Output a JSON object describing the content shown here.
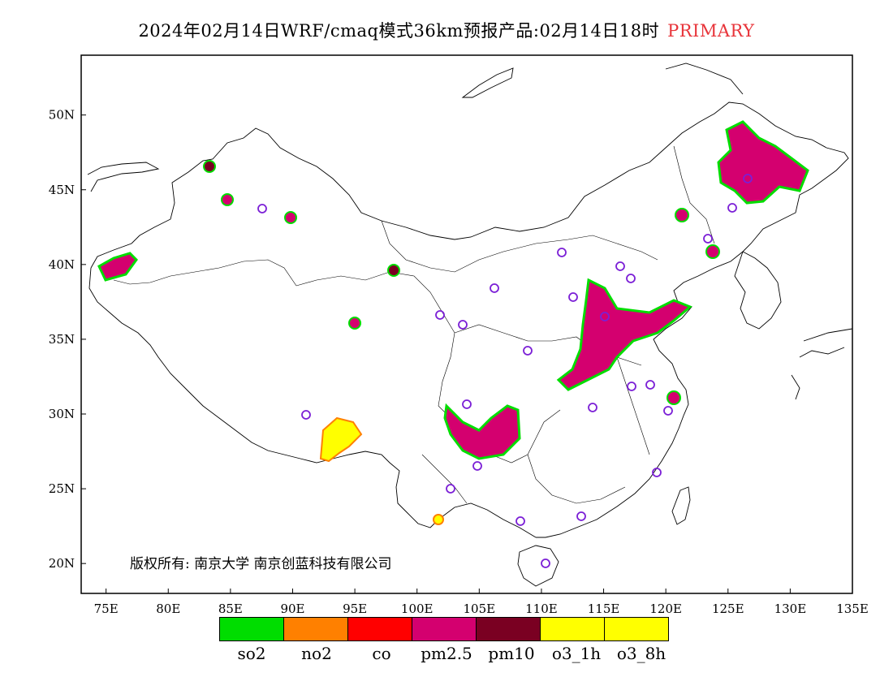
{
  "title": {
    "text": "2024年02月14日WRF/cmaq模式36km预报产品:02月14日18时",
    "tag": "PRIMARY",
    "tag_color": "#e8343a"
  },
  "map": {
    "lon_range": [
      73,
      135
    ],
    "lat_range": [
      18,
      54
    ],
    "lon_ticks": [
      "75E",
      "80E",
      "85E",
      "90E",
      "95E",
      "100E",
      "105E",
      "110E",
      "115E",
      "120E",
      "125E",
      "130E",
      "135E"
    ],
    "lat_ticks": [
      "50N",
      "45N",
      "40N",
      "35N",
      "30N",
      "25N",
      "20N"
    ],
    "copyright": "版权所有: 南京大学 南京创蓝科技有限公司"
  },
  "legend": {
    "items": [
      {
        "label": "so2",
        "color": "#00dd00"
      },
      {
        "label": "no2",
        "color": "#ff8000"
      },
      {
        "label": "co",
        "color": "#ff0000"
      },
      {
        "label": "pm2.5",
        "color": "#d4006f"
      },
      {
        "label": "pm10",
        "color": "#7a0022"
      },
      {
        "label": "o3_1h",
        "color": "#ffff00"
      },
      {
        "label": "o3_8h",
        "color": "#ffff00"
      }
    ]
  }
}
